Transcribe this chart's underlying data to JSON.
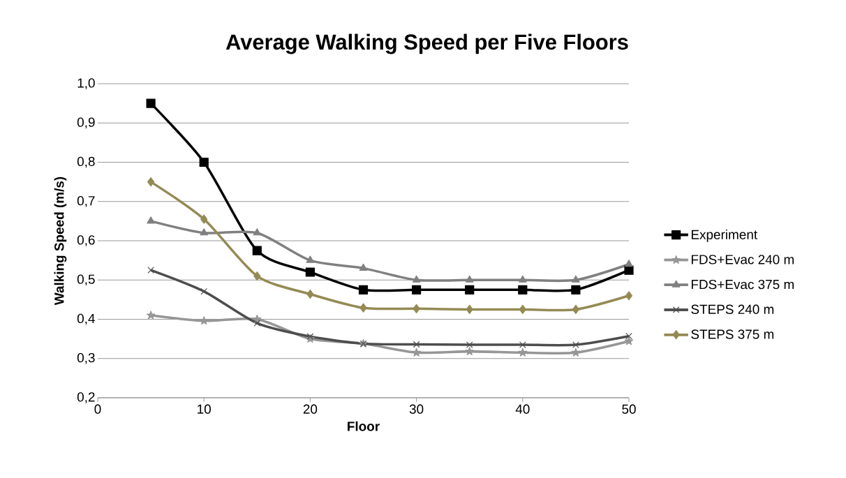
{
  "chart_data": {
    "type": "line",
    "title": "Average Walking Speed per Five Floors",
    "xlabel": "Floor",
    "ylabel": "Walking Speed (m/s)",
    "x": [
      5,
      10,
      15,
      20,
      25,
      30,
      35,
      40,
      45,
      50
    ],
    "series": [
      {
        "name": "Experiment",
        "color": "#000000",
        "marker": "square",
        "values": [
          0.95,
          0.8,
          0.575,
          0.52,
          0.475,
          0.475,
          0.475,
          0.475,
          0.475,
          0.525
        ]
      },
      {
        "name": "FDS+Evac 240 m",
        "color": "#969696",
        "marker": "star",
        "values": [
          0.41,
          0.396,
          0.4,
          0.35,
          0.338,
          0.315,
          0.318,
          0.315,
          0.315,
          0.344
        ]
      },
      {
        "name": "FDS+Evac 375 m",
        "color": "#808080",
        "marker": "triangle",
        "values": [
          0.65,
          0.62,
          0.62,
          0.55,
          0.53,
          0.5,
          0.5,
          0.5,
          0.5,
          0.54
        ]
      },
      {
        "name": "STEPS 240 m",
        "color": "#4d4d4d",
        "marker": "cross",
        "values": [
          0.525,
          0.471,
          0.39,
          0.356,
          0.338,
          0.336,
          0.335,
          0.335,
          0.335,
          0.357
        ]
      },
      {
        "name": "STEPS 375 m",
        "color": "#948a54",
        "marker": "diamond",
        "values": [
          0.75,
          0.655,
          0.51,
          0.464,
          0.429,
          0.427,
          0.425,
          0.425,
          0.425,
          0.46
        ]
      }
    ],
    "xlim": [
      0,
      50
    ],
    "xticks": [
      0,
      10,
      20,
      30,
      40,
      50
    ],
    "ylim": [
      0.2,
      1.0
    ],
    "yticks": [
      {
        "value": 0.2,
        "label": "0,2"
      },
      {
        "value": 0.3,
        "label": "0,3"
      },
      {
        "value": 0.4,
        "label": "0,4"
      },
      {
        "value": 0.5,
        "label": "0,5"
      },
      {
        "value": 0.6,
        "label": "0,6"
      },
      {
        "value": 0.7,
        "label": "0,7"
      },
      {
        "value": 0.8,
        "label": "0,8"
      },
      {
        "value": 0.9,
        "label": "0,9"
      },
      {
        "value": 1.0,
        "label": "1,0"
      }
    ],
    "grid": "y",
    "legend": "right",
    "line_style": "solid"
  }
}
